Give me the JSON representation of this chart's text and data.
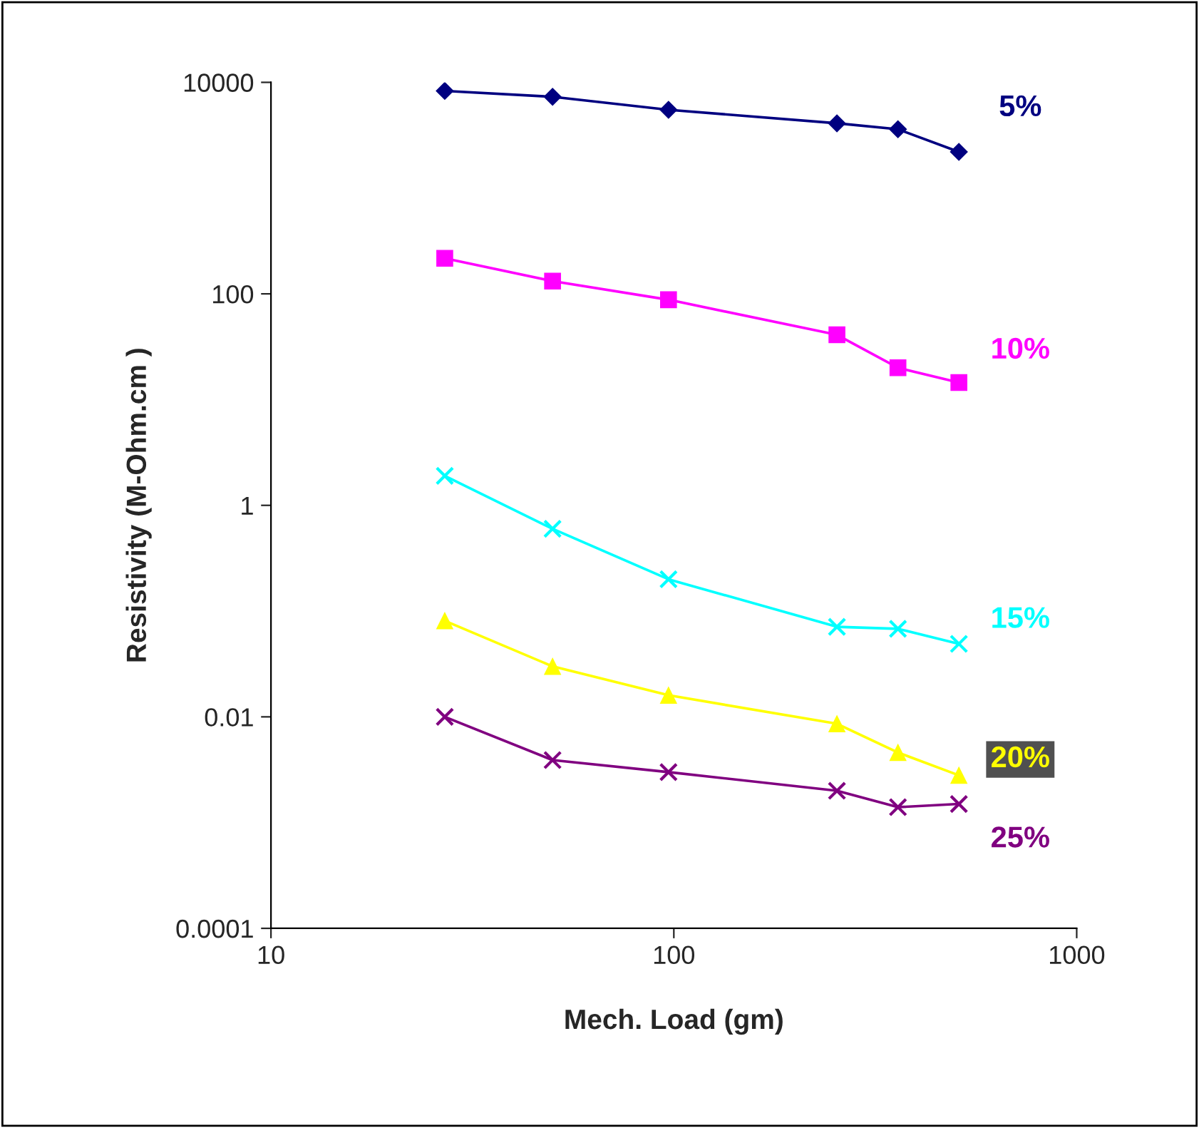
{
  "chart_data": {
    "type": "line",
    "xlabel": "Mech. Load (gm)",
    "ylabel": "Resistivity (M-Ohm.cm )",
    "log": "xy",
    "xlim": [
      10,
      1000
    ],
    "ylim": [
      0.0001,
      10000
    ],
    "xticks": [
      10,
      100,
      1000
    ],
    "yticks": [
      0.0001,
      0.01,
      1,
      100,
      10000
    ],
    "x": [
      27,
      50,
      97,
      254,
      360,
      510
    ],
    "series": [
      {
        "name": "5%",
        "color": "#000080",
        "marker": "diamond",
        "values": [
          8300,
          7300,
          5500,
          4100,
          3600,
          2200
        ]
      },
      {
        "name": "10%",
        "color": "#ff00ff",
        "marker": "square",
        "values": [
          217,
          132,
          88,
          41,
          20,
          14.5
        ]
      },
      {
        "name": "15%",
        "color": "#00ffff",
        "marker": "cross",
        "values": [
          1.9,
          0.6,
          0.2,
          0.071,
          0.068,
          0.049
        ]
      },
      {
        "name": "20%",
        "color": "#ffff00",
        "marker": "triangle",
        "values": [
          0.081,
          0.03,
          0.016,
          0.0086,
          0.0046,
          0.0028
        ]
      },
      {
        "name": "25%",
        "color": "#800080",
        "marker": "cross",
        "values": [
          0.01,
          0.0039,
          0.003,
          0.002,
          0.0014,
          0.0015
        ]
      }
    ],
    "grid": false,
    "legend": false
  }
}
